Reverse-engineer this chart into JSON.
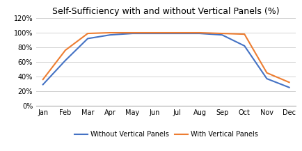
{
  "title": "Self-Sufficiency with and without Vertical Panels (%)",
  "months": [
    "Jan",
    "Feb",
    "Mar",
    "Apr",
    "May",
    "Jun",
    "Jul",
    "Aug",
    "Sep",
    "Oct",
    "Nov",
    "Dec"
  ],
  "without_panels": [
    29,
    62,
    92,
    97,
    99,
    99,
    99,
    99,
    97,
    82,
    37,
    25
  ],
  "with_panels": [
    36,
    76,
    99,
    100,
    100,
    100,
    100,
    100,
    99,
    98,
    45,
    32
  ],
  "color_without": "#4472C4",
  "color_with": "#ED7D31",
  "ylim": [
    0,
    120
  ],
  "yticks": [
    0,
    20,
    40,
    60,
    80,
    100,
    120
  ],
  "legend_without": "Without Vertical Panels",
  "legend_with": "With Vertical Panels",
  "bg_color": "#ffffff",
  "grid_color": "#d3d3d3",
  "linewidth": 1.5,
  "title_fontsize": 9,
  "tick_fontsize": 7,
  "legend_fontsize": 7
}
